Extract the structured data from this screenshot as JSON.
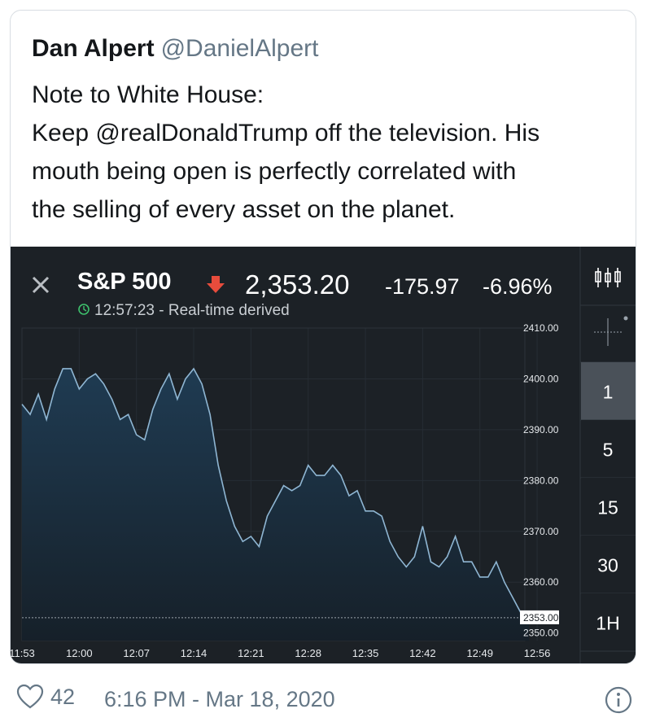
{
  "tweet": {
    "author_name": "Dan Alpert",
    "author_handle": "@DanielAlpert",
    "text_lines": [
      "Note to White House:",
      "Keep @realDonaldTrump off the television. His",
      "mouth being open is perfectly correlated with",
      "the selling of every asset on the planet."
    ],
    "likes": "42",
    "timestamp": "6:16 PM - Mar 18, 2020"
  },
  "chart_header": {
    "symbol": "S&P 500",
    "price": "2,353.20",
    "change": "-175.97",
    "change_pct": "-6.96%",
    "time": "12:57:23",
    "source": "Real-time derived",
    "price_marker": "2353.00"
  },
  "interval_buttons": [
    "1",
    "5",
    "15",
    "30",
    "1H"
  ],
  "selected_interval": "1",
  "colors": {
    "background": "#1c2126",
    "line": "#8fb6d3",
    "down_arrow": "#e74c3c",
    "selected": "#4a5159"
  },
  "chart_data": {
    "type": "area",
    "x_ticks": [
      "11:53",
      "12:00",
      "12:07",
      "12:14",
      "12:21",
      "12:28",
      "12:35",
      "12:42",
      "12:49",
      "12:56"
    ],
    "y_ticks": [
      "2410.00",
      "2400.00",
      "2390.00",
      "2380.00",
      "2370.00",
      "2360.00",
      "2350.00"
    ],
    "xlim": [
      0,
      61.5
    ],
    "ylim": [
      2348.5,
      2410
    ],
    "values": [
      2395,
      2393,
      2397,
      2392,
      2398,
      2402,
      2402,
      2398,
      2400,
      2401,
      2399,
      2396,
      2392,
      2393,
      2389,
      2388,
      2394,
      2398,
      2401,
      2396,
      2400,
      2402,
      2399,
      2393,
      2383,
      2376,
      2371,
      2368,
      2369,
      2367,
      2373,
      2376,
      2379,
      2378,
      2379,
      2383,
      2381,
      2381,
      2383,
      2381,
      2377,
      2378,
      2374,
      2374,
      2373,
      2368,
      2365,
      2363,
      2365,
      2371,
      2364,
      2363,
      2365,
      2369,
      2364,
      2364,
      2361,
      2361,
      2364,
      2360,
      2357,
      2354,
      2353
    ]
  }
}
